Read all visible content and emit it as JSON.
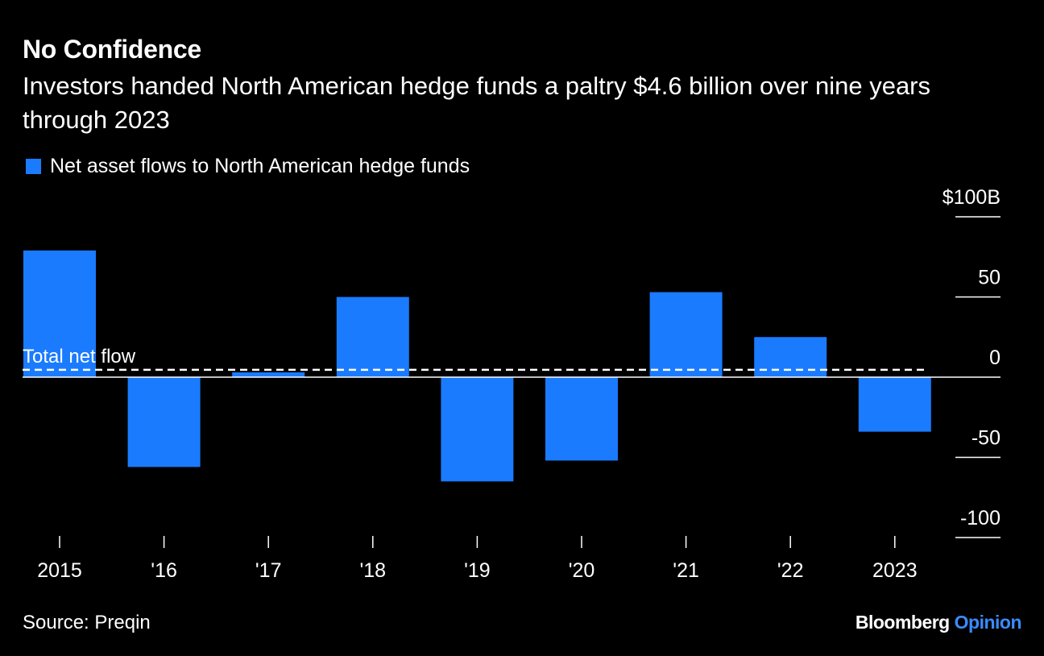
{
  "title": "No Confidence",
  "subtitle": "Investors handed North American hedge funds a paltry $4.6 billion over nine years through 2023",
  "source": "Source: Preqin",
  "brand": {
    "name": "Bloomberg",
    "suffix": "Opinion"
  },
  "colors": {
    "bar": "#1A7BFF",
    "background": "#000000",
    "text": "#FFFFFF",
    "opinion": "#3B8BFF"
  },
  "chart_data": {
    "type": "bar",
    "categories": [
      "2015",
      "'16",
      "'17",
      "'18",
      "'19",
      "'20",
      "'21",
      "'22",
      "2023"
    ],
    "series": [
      {
        "name": "Net asset flows to North American hedge funds",
        "values": [
          79,
          -56,
          3,
          50,
          -65,
          -52,
          53,
          25,
          -34
        ]
      }
    ],
    "reference_line": {
      "label": "Total net flow",
      "value": 4.6,
      "style": "dashed"
    },
    "y_ticks": [
      "$100B",
      "50",
      "0",
      "-50",
      "-100"
    ],
    "y_tick_values": [
      100,
      50,
      0,
      -50,
      -100
    ],
    "ylim": [
      -100,
      100
    ],
    "y_axis_position": "right",
    "grid": false,
    "legend_position": "top-left"
  }
}
